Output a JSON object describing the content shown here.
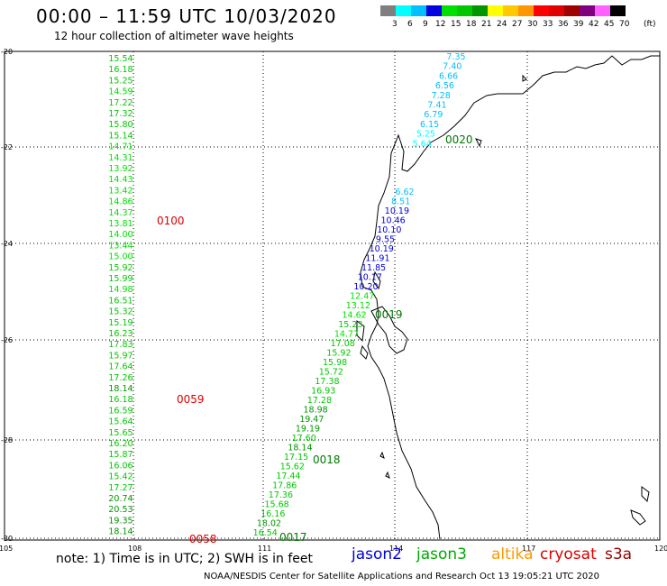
{
  "header": {
    "title": "00:00 – 11:59 UTC 10/03/2020",
    "subtitle": "12 hour collection of altimeter wave heights"
  },
  "legend": {
    "unit": "(ft)",
    "levels": [
      "3",
      "6",
      "9",
      "12",
      "15",
      "18",
      "21",
      "24",
      "27",
      "30",
      "33",
      "36",
      "39",
      "42",
      "45",
      "70"
    ],
    "colors": [
      "#7f7f7f",
      "#00ffff",
      "#00bfff",
      "#0000e0",
      "#00e000",
      "#00c800",
      "#009600",
      "#ffff00",
      "#ffc800",
      "#ff9600",
      "#ff0000",
      "#e00000",
      "#a00000",
      "#800080",
      "#ff60ff",
      "#000000"
    ]
  },
  "map": {
    "lat_labels": [
      "-20",
      "-22",
      "-24",
      "-26",
      "-28",
      "-30"
    ],
    "lon_labels": [
      "105",
      "108",
      "111",
      "114",
      "117",
      "120"
    ]
  },
  "tracks": [
    {
      "satellite": "cryosat",
      "time_label": "0100",
      "time_color": "#dd0000",
      "values": [
        "15.54",
        "16.18",
        "15.25",
        "14.59",
        "17.22",
        "17.32",
        "15.80",
        "15.14",
        "14.71",
        "14.31",
        "13.92",
        "14.43",
        "13.42",
        "14.86",
        "14.37",
        "13.81",
        "14.00",
        "13.44",
        "15.00",
        "15.92",
        "15.99",
        "14.98",
        "16.51",
        "15.32",
        "15.19",
        "16.23",
        "17.83",
        "15.97",
        "17.64",
        "17.26",
        "18.14",
        "16.18",
        "16.59",
        "15.64",
        "15.65",
        "16.20",
        "15.87",
        "16.06",
        "15.42",
        "17.27",
        "20.74",
        "20.53",
        "19.35",
        "18.14"
      ]
    },
    {
      "satellite": "cryosat",
      "time_label": "0059",
      "time_color": "#dd0000",
      "values": []
    },
    {
      "satellite": "cryosat",
      "time_label": "0058",
      "time_color": "#dd0000",
      "values": []
    },
    {
      "satellite": "jason3",
      "time_label": "0020",
      "time_color": "#007a00",
      "values": [
        "7.35",
        "7.40",
        "6.66",
        "6.56",
        "7.28",
        "7.41",
        "6.79",
        "6.15",
        "5.25",
        "5.64"
      ]
    },
    {
      "satellite": "jason3",
      "time_label": "0019",
      "time_color": "#007a00",
      "values": [
        "6.62",
        "8.51",
        "10.19",
        "10.46",
        "10.10",
        "9.55",
        "10.19",
        "11.91",
        "11.85",
        "10.17",
        "10.20",
        "12.47",
        "13.12",
        "14.62",
        "15.23",
        "14.77",
        "17.08",
        "15.92",
        "15.98",
        "15.72",
        "17.38",
        "16.93",
        "17.28",
        "18.98",
        "19.47",
        "19.19",
        "17.60",
        "18.14",
        "17.15",
        "15.62",
        "17.44",
        "17.86",
        "17.36",
        "15.68",
        "16.16",
        "18.02",
        "16.54"
      ]
    },
    {
      "satellite": "jason3",
      "time_label": "0018",
      "time_color": "#007a00",
      "values": []
    },
    {
      "satellite": "jason3",
      "time_label": "0017",
      "time_color": "#007a00",
      "values": []
    }
  ],
  "footer": {
    "note": "note:  1) Time is in UTC;  2) SWH is in feet",
    "satellites": [
      {
        "name": "jason2",
        "color": "#0000dd"
      },
      {
        "name": "jason3",
        "color": "#00aa00"
      },
      {
        "name": "altika",
        "color": "#ff9900"
      },
      {
        "name": "cryosat",
        "color": "#dd0000"
      },
      {
        "name": "s3a",
        "color": "#990000"
      }
    ],
    "credit": "NOAA/NESDIS Center for Satellite Applications and Research      Oct 13 19:05:21 UTC 2020"
  }
}
